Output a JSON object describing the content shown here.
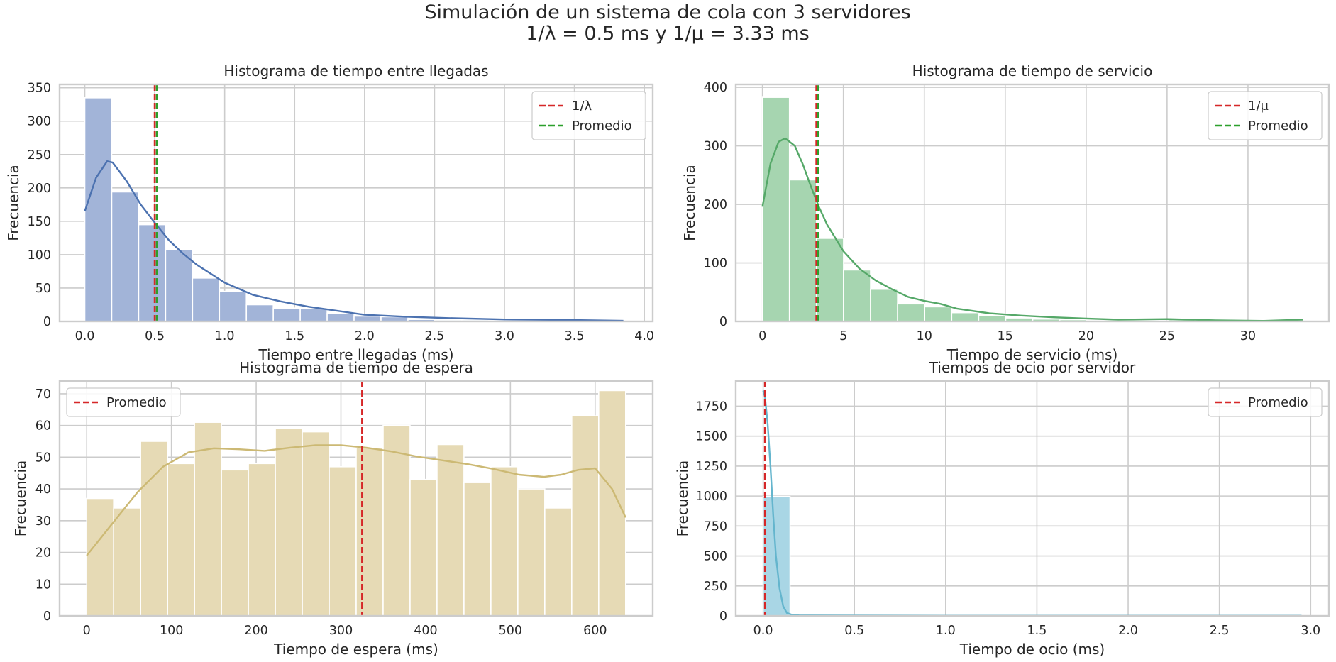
{
  "figure": {
    "title_line1": "Simulación de un sistema de cola con 3 servidores",
    "title_line2": "1/λ = 0.5 ms y 1/μ = 3.33 ms"
  },
  "chart_data": [
    {
      "type": "bar",
      "title": "Histograma de tiempo entre llegadas",
      "xlabel": "Tiempo entre llegadas (ms)",
      "ylabel": "Frecuencia",
      "xlim": [
        -0.18,
        4.06
      ],
      "ylim": [
        0,
        355
      ],
      "xticks": [
        0,
        0.5,
        1.0,
        1.5,
        2.0,
        2.5,
        3.0,
        3.5,
        4.0
      ],
      "xtick_labels": [
        "0.0",
        "0.5",
        "1.0",
        "1.5",
        "2.0",
        "2.5",
        "3.0",
        "3.5",
        "4.0"
      ],
      "yticks": [
        0,
        50,
        100,
        150,
        200,
        250,
        300,
        350
      ],
      "ytick_labels": [
        "0",
        "50",
        "100",
        "150",
        "200",
        "250",
        "300",
        "350"
      ],
      "bin_start": 0,
      "bin_width": 0.1925,
      "values": [
        335,
        194,
        145,
        108,
        65,
        45,
        25,
        20,
        19,
        12,
        8,
        7,
        3,
        2,
        2,
        1,
        1,
        1,
        1,
        1
      ],
      "kde": {
        "x": [
          0,
          0.08,
          0.16,
          0.2,
          0.3,
          0.4,
          0.5,
          0.6,
          0.7,
          0.8,
          1.0,
          1.2,
          1.4,
          1.6,
          1.8,
          2.0,
          2.3,
          2.6,
          3.0,
          3.5,
          3.85
        ],
        "y": [
          165,
          215,
          240,
          238,
          210,
          175,
          148,
          122,
          102,
          85,
          58,
          40,
          30,
          22,
          16,
          10,
          7,
          5,
          3,
          2,
          1
        ]
      },
      "bar_color": "#a2b4d8",
      "kde_color": "#4c72b0",
      "vlines": [
        {
          "label": "1/λ",
          "x": 0.5,
          "color": "#d62728"
        },
        {
          "label": "Promedio",
          "x": 0.515,
          "color": "#2ca02c"
        }
      ],
      "legend": "top-right"
    },
    {
      "type": "bar",
      "title": "Histograma de tiempo de servicio",
      "xlabel": "Tiempo de servicio (ms)",
      "ylabel": "Frecuencia",
      "xlim": [
        -1.65,
        35.0
      ],
      "ylim": [
        0,
        405
      ],
      "xticks": [
        0,
        5,
        10,
        15,
        20,
        25,
        30
      ],
      "xtick_labels": [
        "0",
        "5",
        "10",
        "15",
        "20",
        "25",
        "30"
      ],
      "yticks": [
        0,
        100,
        200,
        300,
        400
      ],
      "ytick_labels": [
        "0",
        "100",
        "200",
        "300",
        "400"
      ],
      "bin_start": 0,
      "bin_width": 1.67,
      "values": [
        383,
        242,
        142,
        88,
        55,
        30,
        25,
        15,
        10,
        6,
        4,
        3,
        2,
        1,
        1,
        3,
        2,
        1,
        1,
        2
      ],
      "kde": {
        "x": [
          0,
          0.5,
          1.0,
          1.4,
          2.0,
          2.5,
          3.0,
          3.5,
          4.0,
          5.0,
          6.0,
          7.0,
          8.0,
          9.0,
          10.0,
          11.0,
          12.0,
          14.0,
          16.0,
          18.0,
          20.0,
          22.0,
          25.0,
          28.0,
          31.0,
          33.4
        ],
        "y": [
          196,
          270,
          307,
          313,
          300,
          268,
          230,
          195,
          165,
          120,
          90,
          70,
          55,
          42,
          35,
          30,
          22,
          14,
          10,
          7,
          5,
          3,
          4,
          2,
          1,
          3
        ]
      },
      "bar_color": "#a6d5b0",
      "kde_color": "#55a868",
      "vlines": [
        {
          "label": "1/μ",
          "x": 3.33,
          "color": "#d62728"
        },
        {
          "label": "Promedio",
          "x": 3.45,
          "color": "#2ca02c"
        }
      ],
      "legend": "top-right"
    },
    {
      "type": "bar",
      "title": "Histograma de tiempo de espera",
      "xlabel": "Tiempo de espera (ms)",
      "ylabel": "Frecuencia",
      "xlim": [
        -32,
        668
      ],
      "ylim": [
        0,
        74
      ],
      "xticks": [
        0,
        100,
        200,
        300,
        400,
        500,
        600
      ],
      "xtick_labels": [
        "0",
        "100",
        "200",
        "300",
        "400",
        "500",
        "600"
      ],
      "yticks": [
        0,
        10,
        20,
        30,
        40,
        50,
        60,
        70
      ],
      "ytick_labels": [
        "0",
        "10",
        "20",
        "30",
        "40",
        "50",
        "60",
        "70"
      ],
      "bin_start": 0,
      "bin_width": 31.8,
      "values": [
        37,
        34,
        55,
        48,
        61,
        46,
        48,
        59,
        58,
        47,
        53,
        60,
        43,
        54,
        42,
        47,
        40,
        34,
        63,
        71
      ],
      "kde": {
        "x": [
          0,
          30,
          60,
          90,
          120,
          150,
          180,
          210,
          240,
          270,
          300,
          330,
          360,
          390,
          420,
          450,
          480,
          510,
          540,
          560,
          580,
          600,
          620,
          636
        ],
        "y": [
          19,
          29,
          39,
          47,
          51.5,
          52.8,
          52.5,
          52.0,
          53.0,
          53.8,
          53.8,
          53.0,
          51.8,
          50.2,
          49.0,
          47.8,
          46.3,
          44.5,
          43.8,
          44.5,
          46.0,
          46.5,
          40.0,
          31.0
        ]
      },
      "bar_color": "#e6dab5",
      "kde_color": "#ccb974",
      "vlines": [
        {
          "label": "Promedio",
          "x": 325,
          "color": "#d62728"
        }
      ],
      "legend": "top-left"
    },
    {
      "type": "bar",
      "title": "Tiempos de ocio por servidor",
      "xlabel": "Tiempo de ocio (ms)",
      "ylabel": "Frecuencia",
      "xlim": [
        -0.15,
        3.1
      ],
      "ylim": [
        0,
        1960
      ],
      "xticks": [
        0,
        0.5,
        1.0,
        1.5,
        2.0,
        2.5,
        3.0
      ],
      "xtick_labels": [
        "0.0",
        "0.5",
        "1.0",
        "1.5",
        "2.0",
        "2.5",
        "3.0"
      ],
      "yticks": [
        0,
        250,
        500,
        750,
        1000,
        1250,
        1500,
        1750
      ],
      "ytick_labels": [
        "0",
        "250",
        "500",
        "750",
        "1000",
        "1250",
        "1500",
        "1750"
      ],
      "bin_start": 0,
      "bin_width": 0.1475,
      "values": [
        996,
        3,
        2,
        1,
        1,
        1,
        1,
        1,
        1,
        1,
        1,
        1,
        1,
        1,
        1,
        1,
        1,
        1,
        1,
        1
      ],
      "kde": {
        "x": [
          0,
          0.01,
          0.025,
          0.04,
          0.055,
          0.07,
          0.09,
          0.11,
          0.13,
          0.16,
          0.2,
          0.5,
          1.0,
          1.5,
          2.0,
          2.5,
          2.95
        ],
        "y": [
          1880,
          1830,
          1600,
          1250,
          850,
          500,
          230,
          80,
          25,
          8,
          4,
          3,
          2,
          2,
          2,
          2,
          2
        ]
      },
      "bar_color": "#a9d6e5",
      "kde_color": "#64b5cd",
      "vlines": [
        {
          "label": "Promedio",
          "x": 0.01,
          "color": "#d62728"
        }
      ],
      "legend": "top-right"
    }
  ]
}
